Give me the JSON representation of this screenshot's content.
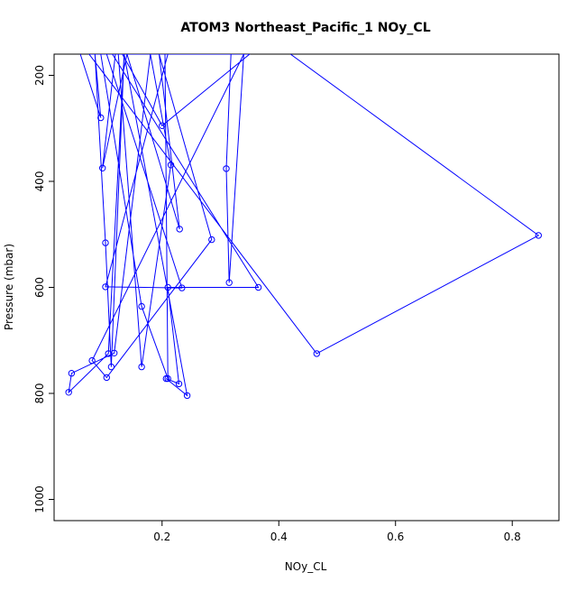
{
  "chart_data": {
    "type": "line",
    "title": "ATOM3 Northeast_Pacific_1 NOy_CL",
    "xlabel": "NOy_CL",
    "ylabel": "Pressure (mbar)",
    "xlim": [
      0.015,
      0.88
    ],
    "ylim": [
      1040,
      160
    ],
    "y_reversed": true,
    "x_ticks": [
      0.2,
      0.4,
      0.6,
      0.8
    ],
    "x_tick_labels": [
      "0.2",
      "0.4",
      "0.6",
      "0.8"
    ],
    "y_ticks": [
      200,
      400,
      600,
      800,
      1000
    ],
    "y_tick_labels": [
      "200",
      "400",
      "600",
      "800",
      "1000"
    ],
    "grid": false,
    "legend": false,
    "series_color": "#0000ff",
    "marker": "open-circle",
    "series": [
      {
        "x": [
          0.06,
          0.095,
          0.085,
          0.103,
          0.113,
          0.135,
          0.108,
          0.04,
          0.045,
          0.118,
          0.18,
          0.215,
          0.165,
          0.125,
          0.17,
          0.35,
          0.2,
          0.132,
          0.095,
          0.165,
          0.21,
          0.205,
          0.12,
          0.098,
          0.14,
          0.23,
          0.195,
          0.285,
          0.105,
          0.08,
          0.34,
          0.315,
          0.31,
          0.318,
          0.105,
          0.234,
          0.103,
          0.21,
          0.13,
          0.115,
          0.365,
          0.21,
          0.229,
          0.207,
          0.243,
          0.135,
          0.075,
          0.465,
          0.845,
          0.42
        ],
        "y": [
          160,
          280,
          160,
          516,
          750,
          160,
          725,
          798,
          762,
          724,
          160,
          369,
          750,
          160,
          160,
          160,
          295,
          160,
          160,
          636,
          772,
          160,
          160,
          375,
          160,
          490,
          160,
          510,
          770,
          738,
          160,
          591,
          376,
          160,
          160,
          601,
          599,
          160,
          160,
          160,
          600,
          600,
          782,
          772,
          804,
          160,
          160,
          725,
          502,
          160
        ]
      }
    ]
  }
}
